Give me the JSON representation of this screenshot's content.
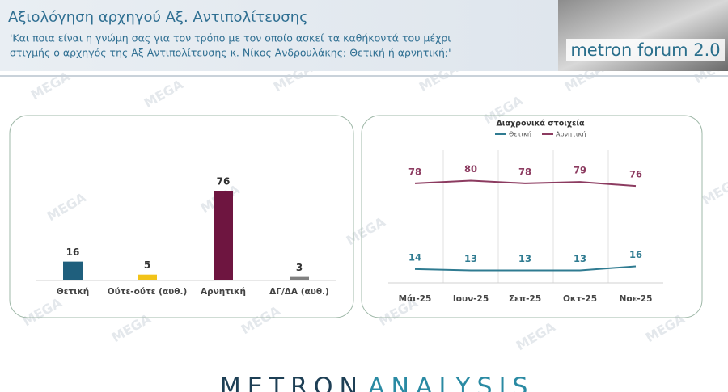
{
  "header": {
    "title": "Αξιολόγηση αρχηγού Αξ. Αντιπολίτευσης",
    "question_line1": "'Και ποια είναι η γνώμη σας για τον τρόπο με τον οποίο ασκεί τα καθήκοντά του μέχρι",
    "question_line2": "στιγμής ο αρχηγός της Αξ Αντιπολίτευσης κ. Νίκος Ανδρουλάκης; Θετική ή αρνητική;'",
    "logo": "metron forum 2.0"
  },
  "footer": {
    "brand_part1": "METRON",
    "brand_part2": "ANALYSIS"
  },
  "watermark": "MEGA",
  "chart_data": [
    {
      "type": "bar",
      "categories": [
        "Θετική",
        "Ούτε-ούτε (αυθ.)",
        "Αρνητική",
        "ΔΓ/ΔΑ (αυθ.)"
      ],
      "values": [
        16,
        5,
        76,
        3
      ],
      "colors": [
        "#1f5f7d",
        "#f2c318",
        "#6e1540",
        "#808080"
      ]
    },
    {
      "type": "line",
      "title": "Διαχρονικά στοιχεία",
      "categories": [
        "Μάι-25",
        "Ιουν-25",
        "Σεπ-25",
        "Οκτ-25",
        "Νοε-25"
      ],
      "series": [
        {
          "name": "Θετική",
          "color": "#2f7b91",
          "values": [
            14,
            13,
            13,
            13,
            16
          ]
        },
        {
          "name": "Αρνητική",
          "color": "#8c3b60",
          "values": [
            78,
            80,
            78,
            79,
            76
          ]
        }
      ]
    }
  ]
}
